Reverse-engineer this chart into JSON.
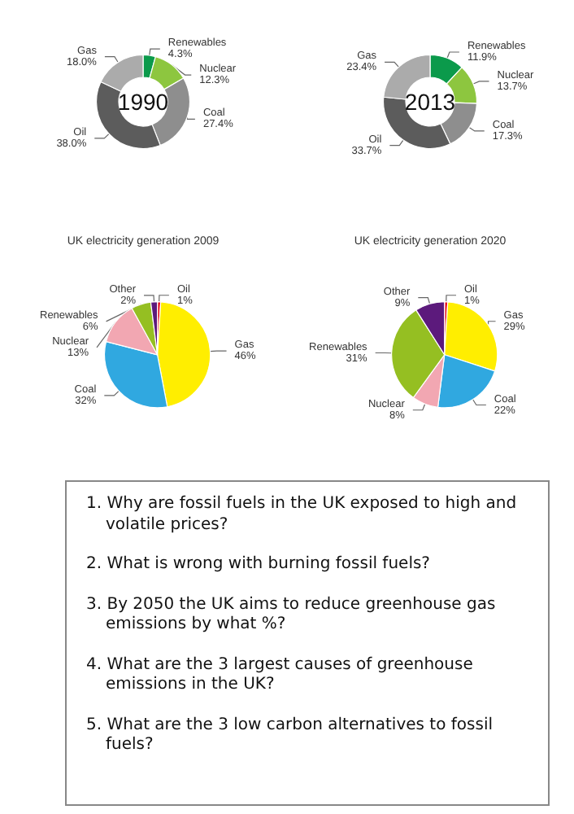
{
  "chart_data": [
    {
      "type": "donut",
      "title": "1990",
      "categories": [
        "Renewables",
        "Nuclear",
        "Coal",
        "Oil",
        "Gas"
      ],
      "values": [
        4.3,
        12.3,
        27.4,
        38.0,
        18.0
      ],
      "value_labels": [
        "4.3%",
        "12.3%",
        "27.4%",
        "38.0%",
        "18.0%"
      ],
      "colors": [
        "#0b9a4b",
        "#8dc63f",
        "#8e8e8e",
        "#5c5c5c",
        "#ababab"
      ]
    },
    {
      "type": "donut",
      "title": "2013",
      "categories": [
        "Renewables",
        "Nuclear",
        "Coal",
        "Oil",
        "Gas"
      ],
      "values": [
        11.9,
        13.7,
        17.3,
        33.7,
        23.4
      ],
      "value_labels": [
        "11.9%",
        "13.7%",
        "17.3%",
        "33.7%",
        "23.4%"
      ],
      "colors": [
        "#0b9a4b",
        "#8dc63f",
        "#8e8e8e",
        "#5c5c5c",
        "#ababab"
      ]
    },
    {
      "type": "pie",
      "title": "UK electricity generation 2009",
      "categories": [
        "Oil",
        "Gas",
        "Coal",
        "Nuclear",
        "Renewables",
        "Other"
      ],
      "values": [
        1,
        46,
        32,
        13,
        6,
        2
      ],
      "value_labels": [
        "1%",
        "46%",
        "32%",
        "13%",
        "6%",
        "2%"
      ],
      "colors": [
        "#e8101e",
        "#ffee00",
        "#30a8e0",
        "#f2a7b2",
        "#95bf22",
        "#5c1a7c"
      ]
    },
    {
      "type": "pie",
      "title": "UK electricity generation 2020",
      "categories": [
        "Oil",
        "Gas",
        "Coal",
        "Nuclear",
        "Renewables",
        "Other"
      ],
      "values": [
        1,
        29,
        22,
        8,
        31,
        9
      ],
      "value_labels": [
        "1%",
        "29%",
        "22%",
        "8%",
        "31%",
        "9%"
      ],
      "colors": [
        "#e8101e",
        "#ffee00",
        "#30a8e0",
        "#f2a7b2",
        "#95bf22",
        "#5c1a7c"
      ]
    },
    {
      "type": "other",
      "annotations": [
        "1. Why are fossil fuels in the UK exposed to high and volatile prices?",
        "2. What is wrong with burning fossil fuels?",
        "3. By 2050 the UK aims to reduce greenhouse gas emissions by what %?",
        "4. What are the 3 largest causes of greenhouse emissions in the UK?",
        "5. What are the 3 low carbon alternatives to fossil fuels?"
      ]
    }
  ]
}
